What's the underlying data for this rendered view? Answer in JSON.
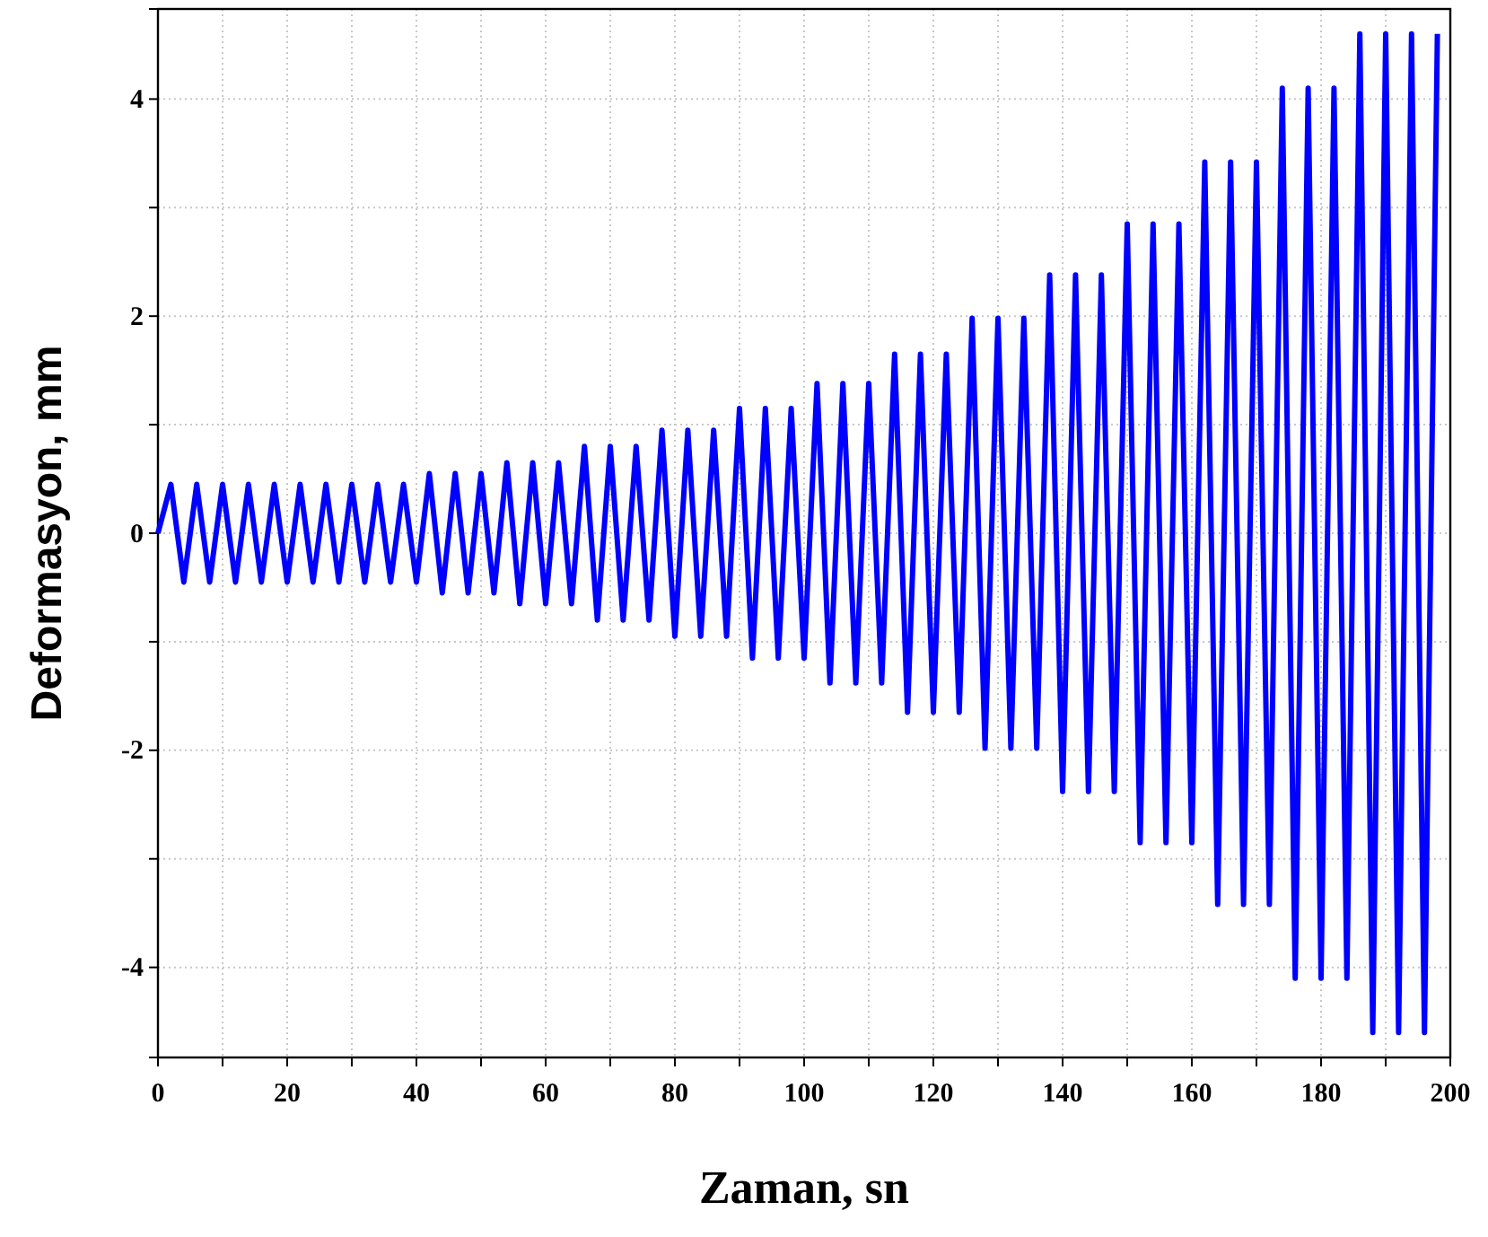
{
  "chart_data": {
    "type": "line",
    "xlabel": "Zaman, sn",
    "ylabel": "Deformasyon, mm",
    "xlim": [
      0,
      200
    ],
    "ylim": [
      -4.83,
      4.83
    ],
    "xticks": [
      0,
      {
        "value": 10,
        "label": null
      },
      20,
      {
        "value": 30,
        "label": null
      },
      40,
      {
        "value": 50,
        "label": null
      },
      60,
      {
        "value": 70,
        "label": null
      },
      80,
      {
        "value": 90,
        "label": null
      },
      100,
      {
        "value": 110,
        "label": null
      },
      120,
      {
        "value": 130,
        "label": null
      },
      140,
      {
        "value": 150,
        "label": null
      },
      160,
      {
        "value": 170,
        "label": null
      },
      180,
      {
        "value": 190,
        "label": null
      },
      200
    ],
    "yticks": [
      -4,
      {
        "value": -3,
        "label": null
      },
      -2,
      {
        "value": -1,
        "label": null
      },
      0,
      {
        "value": 1,
        "label": null
      },
      2,
      {
        "value": 3,
        "label": null
      },
      4
    ],
    "grid": true,
    "marker": "none",
    "line_style": "solid",
    "series": [
      {
        "color": "#0000ff",
        "x": [
          0,
          2,
          4,
          6,
          8,
          10,
          12,
          14,
          16,
          18,
          20,
          22,
          24,
          26,
          28,
          30,
          32,
          34,
          36,
          38,
          40,
          42,
          44,
          46,
          48,
          50,
          52,
          54,
          56,
          58,
          60,
          62,
          64,
          66,
          68,
          70,
          72,
          74,
          76,
          78,
          80,
          82,
          84,
          86,
          88,
          90,
          92,
          94,
          96,
          98,
          100,
          102,
          104,
          106,
          108,
          110,
          112,
          114,
          116,
          118,
          120,
          122,
          124,
          126,
          128,
          130,
          132,
          134,
          136,
          138,
          140,
          142,
          144,
          146,
          148,
          150,
          152,
          154,
          156,
          158,
          160,
          162,
          164,
          166,
          168,
          170,
          172,
          174,
          176,
          178,
          180,
          182,
          184,
          186,
          188,
          190,
          192,
          194,
          196,
          198
        ],
        "values": [
          0,
          0.45,
          -0.45,
          0.45,
          -0.45,
          0.45,
          -0.45,
          0.45,
          -0.45,
          0.45,
          -0.45,
          0.45,
          -0.45,
          0.45,
          -0.45,
          0.45,
          -0.45,
          0.45,
          -0.45,
          0.45,
          -0.45,
          0.55,
          -0.55,
          0.55,
          -0.55,
          0.55,
          -0.55,
          0.65,
          -0.65,
          0.65,
          -0.65,
          0.65,
          -0.65,
          0.8,
          -0.8,
          0.8,
          -0.8,
          0.8,
          -0.8,
          0.95,
          -0.95,
          0.95,
          -0.95,
          0.95,
          -0.95,
          1.15,
          -1.15,
          1.15,
          -1.15,
          1.15,
          -1.15,
          1.38,
          -1.38,
          1.38,
          -1.38,
          1.38,
          -1.38,
          1.65,
          -1.65,
          1.65,
          -1.65,
          1.65,
          -1.65,
          1.98,
          -1.98,
          1.98,
          -1.98,
          1.98,
          -1.98,
          2.38,
          -2.38,
          2.38,
          -2.38,
          2.38,
          -2.38,
          2.85,
          -2.85,
          2.85,
          -2.85,
          2.85,
          -2.85,
          3.42,
          -3.42,
          3.42,
          -3.42,
          3.42,
          -3.42,
          4.1,
          -4.1,
          4.1,
          -4.1,
          4.1,
          -4.1,
          4.6,
          -4.6,
          4.6,
          -4.6,
          4.6,
          -4.6,
          4.6
        ]
      }
    ]
  }
}
